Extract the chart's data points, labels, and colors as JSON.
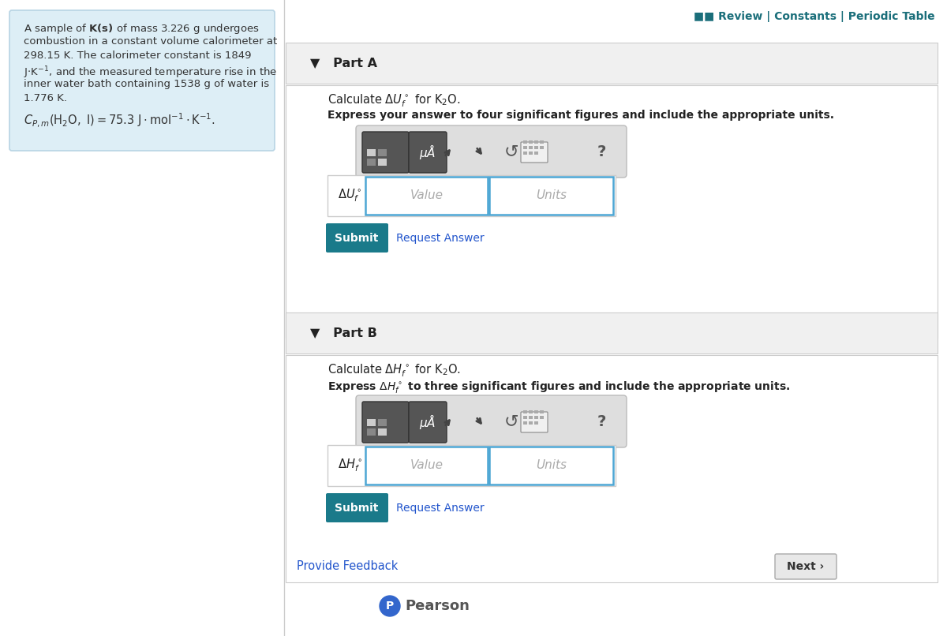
{
  "bg_color": "#ffffff",
  "left_panel_color": "#ddeef6",
  "left_panel_border": "#b8d4e4",
  "header_text": "■■ Review | Constants | Periodic Table",
  "header_color": "#1a6e7a",
  "part_a_label": "▼   Part A",
  "part_a_calc": "Calculate $\\Delta U_f^\\circ$ for $\\mathrm{K_2O}$.",
  "part_a_express": "Express your answer to four significant figures and include the appropriate units.",
  "part_a_lhs": "$\\Delta U_f^\\circ$ =",
  "part_b_label": "▼   Part B",
  "part_b_calc": "Calculate $\\Delta H_f^\\circ$ for $\\mathrm{K_2O}$.",
  "part_b_express": "Express $\\Delta H_f^\\circ$ to three significant figures and include the appropriate units.",
  "part_b_lhs": "$\\Delta H_f^\\circ$ =",
  "submit_color": "#1a7a8a",
  "submit_text_color": "#ffffff",
  "submit_label": "Submit",
  "value_placeholder": "Value",
  "units_placeholder": "Units",
  "request_answer_text": "Request Answer",
  "provide_feedback": "Provide Feedback",
  "next_text": "Next ›",
  "pearson_text": "Pearson",
  "input_border_color": "#4da6d4",
  "toolbar_bg": "#dedede",
  "section_header_bg": "#f0f0f0",
  "section_header_border": "#cccccc",
  "main_border_color": "#cccccc",
  "btn_dark": "#555555",
  "btn_dark_border": "#333333",
  "arrow_color": "#444444",
  "icon_color": "#555555",
  "link_color": "#2255cc",
  "left_text_color": "#333333",
  "part_text_color": "#222222",
  "placeholder_color": "#aaaaaa",
  "next_btn_bg": "#e8e8e8",
  "next_btn_border": "#aaaaaa",
  "next_btn_text": "#333333",
  "pearson_circle_color": "#3366cc",
  "pearson_text_color": "#555555",
  "separator_color": "#cccccc"
}
